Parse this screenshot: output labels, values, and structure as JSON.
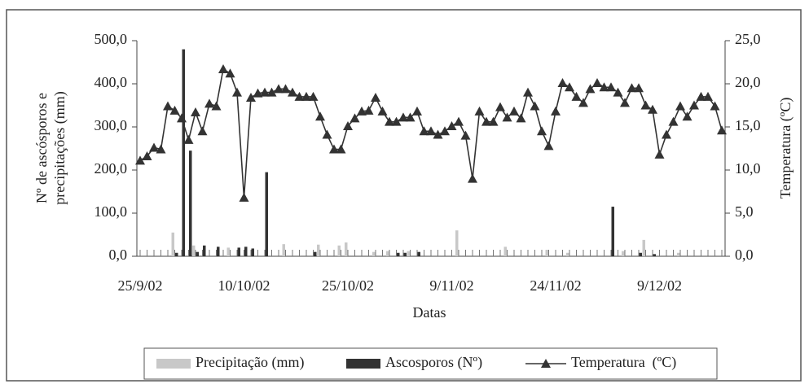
{
  "chart_data": {
    "type": "bar-line",
    "y_label": "Nº de ascósporos e precipitações (mm)",
    "y2_label": "Temperatura (ºC)",
    "x_label": "Datas",
    "categories": [
      "25/9/02",
      null,
      null,
      null,
      null,
      null,
      null,
      null,
      null,
      null,
      null,
      null,
      null,
      null,
      null,
      "10/10/02",
      null,
      null,
      null,
      null,
      null,
      null,
      null,
      null,
      null,
      null,
      null,
      null,
      null,
      null,
      "25/10/02",
      null,
      null,
      null,
      null,
      null,
      null,
      null,
      null,
      null,
      null,
      null,
      null,
      null,
      null,
      "9/11/02",
      null,
      null,
      null,
      null,
      null,
      null,
      null,
      null,
      null,
      null,
      null,
      null,
      null,
      null,
      "24/11/02",
      null,
      null,
      null,
      null,
      null,
      null,
      null,
      null,
      null,
      null,
      null,
      null,
      null,
      null,
      "9/12/02",
      null,
      null,
      null,
      null,
      null,
      null,
      null,
      null,
      null
    ],
    "series": [
      {
        "name": "Precipitação (mm)",
        "type": "bar",
        "color": "#c8c8c8",
        "values": [
          0,
          0,
          0,
          0,
          0,
          55,
          0,
          0,
          25,
          0,
          0,
          0,
          0,
          20,
          0,
          0,
          0,
          0,
          0,
          0,
          0,
          28,
          0,
          0,
          0,
          0,
          27,
          0,
          0,
          25,
          32,
          0,
          0,
          0,
          10,
          0,
          12,
          0,
          0,
          12,
          0,
          0,
          0,
          0,
          0,
          0,
          60,
          0,
          0,
          0,
          0,
          0,
          0,
          22,
          0,
          0,
          0,
          0,
          0,
          15,
          0,
          0,
          8,
          0,
          0,
          0,
          0,
          0,
          0,
          0,
          12,
          0,
          0,
          38,
          0,
          0,
          0,
          0,
          8,
          0,
          0,
          0,
          0,
          0,
          0
        ]
      },
      {
        "name": "Ascosporos (Nº)",
        "type": "bar",
        "color": "#333333",
        "values": [
          0,
          0,
          0,
          0,
          0,
          8,
          480,
          245,
          10,
          25,
          0,
          22,
          0,
          0,
          20,
          22,
          18,
          0,
          195,
          0,
          0,
          0,
          0,
          0,
          0,
          10,
          0,
          0,
          0,
          0,
          0,
          0,
          0,
          0,
          0,
          0,
          0,
          8,
          8,
          0,
          10,
          0,
          0,
          0,
          0,
          0,
          0,
          0,
          0,
          0,
          0,
          0,
          0,
          0,
          0,
          0,
          0,
          0,
          0,
          0,
          0,
          0,
          0,
          0,
          0,
          0,
          0,
          0,
          115,
          0,
          0,
          0,
          8,
          0,
          5,
          0,
          0,
          0,
          0,
          0,
          0,
          0,
          0,
          0,
          0
        ]
      },
      {
        "name": "Temperatura  (ºC)",
        "type": "line",
        "axis": "y2",
        "color": "#333333",
        "values": [
          11.1,
          11.6,
          12.6,
          12.4,
          17.4,
          16.9,
          16.0,
          13.5,
          16.7,
          14.5,
          17.7,
          17.4,
          21.7,
          21.2,
          19.0,
          6.8,
          18.4,
          18.9,
          19.0,
          19.0,
          19.4,
          19.4,
          19.0,
          18.5,
          18.5,
          18.5,
          16.2,
          14.1,
          12.4,
          12.4,
          15.1,
          16.0,
          16.8,
          16.9,
          18.4,
          16.8,
          15.6,
          15.6,
          16.1,
          16.1,
          16.8,
          14.5,
          14.5,
          14.1,
          14.5,
          15.1,
          15.6,
          14.0,
          9.0,
          16.8,
          15.6,
          15.6,
          17.3,
          16.1,
          16.8,
          16.0,
          19.0,
          17.4,
          14.5,
          12.8,
          16.8,
          20.1,
          19.6,
          18.5,
          17.8,
          19.4,
          20.1,
          19.6,
          19.6,
          19.0,
          17.8,
          19.5,
          19.5,
          17.5,
          17.0,
          11.8,
          14.1,
          15.6,
          17.4,
          16.2,
          17.5,
          18.5,
          18.5,
          17.4,
          14.6
        ]
      }
    ],
    "ylim": [
      0,
      500
    ],
    "yticks": [
      {
        "value": 0,
        "label": "0,0"
      },
      {
        "value": 100,
        "label": "100,0"
      },
      {
        "value": 200,
        "label": "200,0"
      },
      {
        "value": 300,
        "label": "300,0"
      },
      {
        "value": 400,
        "label": "400,0"
      },
      {
        "value": 500,
        "label": "500,0"
      }
    ],
    "y2lim": [
      0,
      25
    ],
    "y2ticks": [
      {
        "value": 0,
        "label": "0,0"
      },
      {
        "value": 5,
        "label": "5,0"
      },
      {
        "value": 10,
        "label": "10,0"
      },
      {
        "value": 15,
        "label": "15,0"
      },
      {
        "value": 20,
        "label": "20,0"
      },
      {
        "value": 25,
        "label": "25,0"
      }
    ],
    "grid": false,
    "legend": "bottom"
  }
}
